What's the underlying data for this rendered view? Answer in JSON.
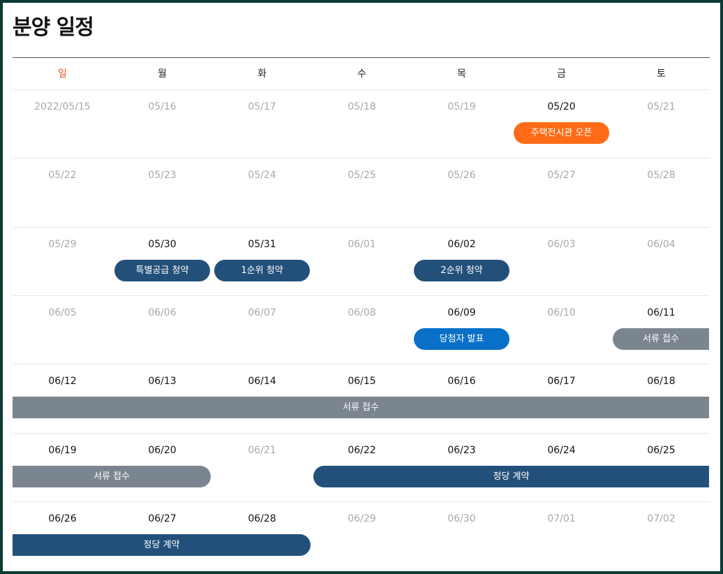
{
  "page": {
    "title": "분양 일정"
  },
  "weekdays": [
    "일",
    "월",
    "화",
    "수",
    "목",
    "금",
    "토"
  ],
  "weeks": [
    [
      "2022/05/15",
      "05/16",
      "05/17",
      "05/18",
      "05/19",
      "05/20",
      "05/21"
    ],
    [
      "05/22",
      "05/23",
      "05/24",
      "05/25",
      "05/26",
      "05/27",
      "05/28"
    ],
    [
      "05/29",
      "05/30",
      "05/31",
      "06/01",
      "06/02",
      "06/03",
      "06/04"
    ],
    [
      "06/05",
      "06/06",
      "06/07",
      "06/08",
      "06/09",
      "06/10",
      "06/11"
    ],
    [
      "06/12",
      "06/13",
      "06/14",
      "06/15",
      "06/16",
      "06/17",
      "06/18"
    ],
    [
      "06/19",
      "06/20",
      "06/21",
      "06/22",
      "06/23",
      "06/24",
      "06/25"
    ],
    [
      "06/26",
      "06/27",
      "06/28",
      "06/29",
      "06/30",
      "07/01",
      "07/02"
    ]
  ],
  "highlighted_dates": [
    "05/20",
    "05/30",
    "05/31",
    "06/02",
    "06/09",
    "06/11",
    "06/12",
    "06/13",
    "06/14",
    "06/15",
    "06/16",
    "06/17",
    "06/18",
    "06/19",
    "06/20",
    "06/22",
    "06/23",
    "06/24",
    "06/25",
    "06/26",
    "06/27",
    "06/28"
  ],
  "events": [
    {
      "label": "주택전시관 오픈",
      "week": 0,
      "start_day": 5,
      "end_day": 5,
      "color": "orange"
    },
    {
      "label": "특별공급 청약",
      "week": 2,
      "start_day": 1,
      "end_day": 1,
      "color": "navy"
    },
    {
      "label": "1순위 청약",
      "week": 2,
      "start_day": 2,
      "end_day": 2,
      "color": "navy"
    },
    {
      "label": "2순위 청약",
      "week": 2,
      "start_day": 4,
      "end_day": 4,
      "color": "navy"
    },
    {
      "label": "당첨자 발표",
      "week": 3,
      "start_day": 4,
      "end_day": 4,
      "color": "blue"
    },
    {
      "label": "서류 접수",
      "week": 3,
      "start_day": 6,
      "end_day": 6,
      "color": "gray",
      "continues_next": true
    },
    {
      "label": "서류 접수",
      "week": 4,
      "start_day": 0,
      "end_day": 6,
      "color": "gray",
      "continues_prev": true,
      "continues_next": true
    },
    {
      "label": "서류 접수",
      "week": 5,
      "start_day": 0,
      "end_day": 1,
      "color": "gray",
      "continues_prev": true
    },
    {
      "label": "정당 계약",
      "week": 5,
      "start_day": 3,
      "end_day": 6,
      "color": "navy",
      "continues_next": true
    },
    {
      "label": "정당 계약",
      "week": 6,
      "start_day": 0,
      "end_day": 2,
      "color": "navy",
      "continues_prev": true
    }
  ],
  "colors": {
    "orange": "#ff6b17",
    "navy": "#23507a",
    "blue": "#0870c7",
    "gray": "#7b8590",
    "sunday": "#e3541c"
  }
}
